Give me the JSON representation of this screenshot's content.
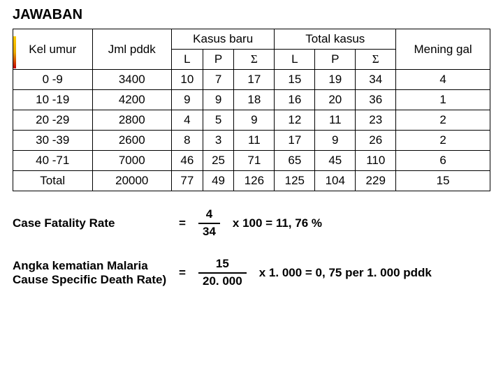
{
  "title": "JAWABAN",
  "table": {
    "columns": {
      "age": "Kel umur",
      "pop": "Jml pddk",
      "new_cases": "Kasus baru",
      "total_cases": "Total kasus",
      "deaths": "Mening gal",
      "L": "L",
      "P": "P",
      "S": "Σ"
    },
    "rows": [
      {
        "age": "0 -9",
        "pop": "3400",
        "nl": "10",
        "np": "7",
        "ns": "17",
        "tl": "15",
        "tp": "19",
        "ts": "34",
        "d": "4"
      },
      {
        "age": "10 -19",
        "pop": "4200",
        "nl": "9",
        "np": "9",
        "ns": "18",
        "tl": "16",
        "tp": "20",
        "ts": "36",
        "d": "1"
      },
      {
        "age": "20 -29",
        "pop": "2800",
        "nl": "4",
        "np": "5",
        "ns": "9",
        "tl": "12",
        "tp": "11",
        "ts": "23",
        "d": "2"
      },
      {
        "age": "30 -39",
        "pop": "2600",
        "nl": "8",
        "np": "3",
        "ns": "11",
        "tl": "17",
        "tp": "9",
        "ts": "26",
        "d": "2"
      },
      {
        "age": "40 -71",
        "pop": "7000",
        "nl": "46",
        "np": "25",
        "ns": "71",
        "tl": "65",
        "tp": "45",
        "ts": "110",
        "d": "6"
      },
      {
        "age": "Total",
        "pop": "20000",
        "nl": "77",
        "np": "49",
        "ns": "126",
        "tl": "125",
        "tp": "104",
        "ts": "229",
        "d": "15"
      }
    ],
    "border_color": "#000000",
    "font_size": 17
  },
  "calc1": {
    "label": "Case Fatality Rate",
    "eq": "=",
    "num": "4",
    "den": "34",
    "tail": "x   100   =  11, 76 %"
  },
  "calc2": {
    "label1": "Angka kematian Malaria",
    "label2": "Cause Specific Death Rate)",
    "eq": "=",
    "num": "15",
    "den": "20. 000",
    "tail": "x  1. 000   =  0, 75 per 1. 000 pddk"
  }
}
